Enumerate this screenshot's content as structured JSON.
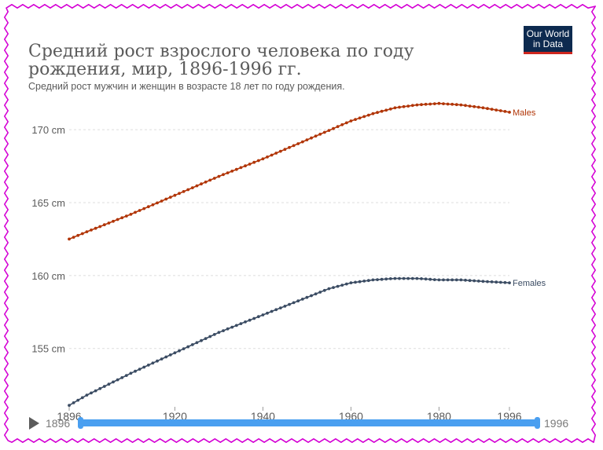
{
  "header": {
    "title": "Средний рост взрослого человека по году рождения, мир, 1896-1996 гг.",
    "subtitle": "Средний рост мужчин и женщин в возрасте 18 лет по году рождения.",
    "logo_line1": "Our World",
    "logo_line2": "in Data"
  },
  "timeline": {
    "start_label": "1896",
    "end_label": "1996",
    "range": [
      1896,
      1996
    ]
  },
  "colors": {
    "males": "#b13507",
    "females": "#3b4c63",
    "grid": "#dddddd",
    "axis_text": "#5b5b5b",
    "frame": "#d400d4"
  },
  "chart_data": {
    "type": "line",
    "title": "Средний рост взрослого человека по году рождения, мир, 1896-1996 гг.",
    "subtitle": "Средний рост мужчин и женщин в возрасте 18 лет по году рождения.",
    "xlabel": "",
    "ylabel": "",
    "xlim": [
      1896,
      1996
    ],
    "ylim": [
      151,
      172
    ],
    "x_ticks": [
      1896,
      1920,
      1940,
      1960,
      1980,
      1996
    ],
    "y_ticks": [
      155,
      160,
      165,
      170
    ],
    "y_tick_labels": [
      "155 cm",
      "160 cm",
      "165 cm",
      "170 cm"
    ],
    "grid": true,
    "markers": true,
    "series": [
      {
        "name": "Males",
        "key": "males",
        "x": [
          1896,
          1900,
          1910,
          1920,
          1930,
          1940,
          1950,
          1960,
          1965,
          1970,
          1975,
          1980,
          1985,
          1990,
          1996
        ],
        "values": [
          162.5,
          163.0,
          164.2,
          165.5,
          166.8,
          168.0,
          169.3,
          170.6,
          171.1,
          171.5,
          171.7,
          171.8,
          171.7,
          171.5,
          171.2
        ]
      },
      {
        "name": "Females",
        "key": "females",
        "x": [
          1896,
          1900,
          1910,
          1920,
          1930,
          1940,
          1950,
          1955,
          1960,
          1965,
          1970,
          1975,
          1980,
          1985,
          1990,
          1996
        ],
        "values": [
          151.1,
          151.8,
          153.3,
          154.7,
          156.1,
          157.3,
          158.5,
          159.1,
          159.5,
          159.7,
          159.8,
          159.8,
          159.7,
          159.7,
          159.6,
          159.5
        ]
      }
    ]
  }
}
